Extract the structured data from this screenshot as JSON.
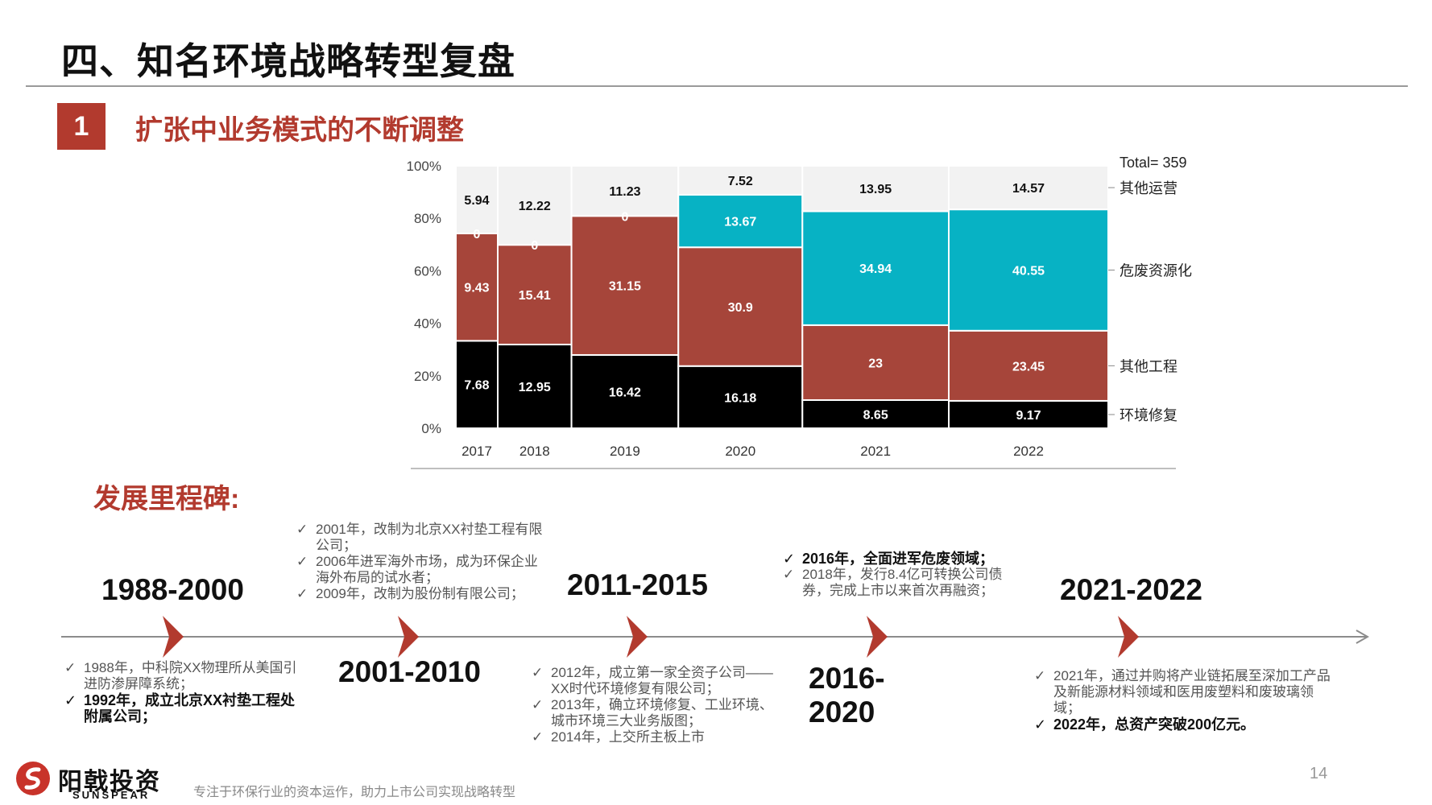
{
  "header": {
    "title": "四、知名环境战略转型复盘",
    "section_number": "1",
    "section_title": "扩张中业务模式的不断调整"
  },
  "colors": {
    "accent": "#b23a2e",
    "环境修复": "#000000",
    "其他工程": "#a6453a",
    "危废资源化": "#07b2c4",
    "其他运营": "#f2f2f2"
  },
  "chart_data": {
    "type": "bar",
    "subtype": "marimekko",
    "categories": [
      "2017",
      "2018",
      "2019",
      "2020",
      "2021",
      "2022"
    ],
    "series": [
      {
        "name": "环境修复",
        "values": [
          7.68,
          12.95,
          16.42,
          16.18,
          8.65,
          9.17
        ],
        "labels": [
          "7.68",
          "12.95",
          "16.42",
          "16.18",
          "8.65",
          "9.17"
        ]
      },
      {
        "name": "其他工程",
        "values": [
          9.43,
          15.41,
          31.15,
          30.9,
          23,
          23.45
        ],
        "labels": [
          "9.43",
          "15.41",
          "31.15",
          "30.9",
          "23",
          "23.45"
        ]
      },
      {
        "name": "危废资源化",
        "values": [
          0,
          0,
          0,
          13.67,
          34.94,
          40.55
        ],
        "labels": [
          "0",
          "0",
          "0",
          "13.67",
          "34.94",
          "40.55"
        ]
      },
      {
        "name": "其他运营",
        "values": [
          5.94,
          12.22,
          11.23,
          7.52,
          13.95,
          14.57
        ],
        "labels": [
          "5.94",
          "12.22",
          "11.23",
          "7.52",
          "13.95",
          "14.57"
        ]
      }
    ],
    "y_tick_labels": [
      "0%",
      "20%",
      "40%",
      "60%",
      "80%",
      "100%"
    ],
    "ylim": [
      0,
      100
    ],
    "total_label": "Total= 359",
    "legend_position": "right"
  },
  "milestones": {
    "title": "发展里程碑:",
    "periods": [
      {
        "label": "1988-2000",
        "notes": [
          {
            "text": "1988年，中科院XX物理所从美国引进防渗屏障系统；",
            "bold": false
          },
          {
            "text": "1992年，成立北京XX衬垫工程处附属公司；",
            "bold": true
          }
        ]
      },
      {
        "label": "2001-2010",
        "notes": [
          {
            "text": "2001年，改制为北京XX衬垫工程有限公司；",
            "bold": false
          },
          {
            "text": "2006年进军海外市场，成为环保企业海外布局的试水者；",
            "bold": false
          },
          {
            "text": "2009年，改制为股份制有限公司；",
            "bold": false
          }
        ]
      },
      {
        "label": "2011-2015",
        "notes": [
          {
            "text": "2012年，成立第一家全资子公司——XX时代环境修复有限公司；",
            "bold": false
          },
          {
            "text": "2013年，确立环境修复、工业环境、城市环境三大业务版图；",
            "bold": false
          },
          {
            "text": "2014年，上交所主板上市",
            "bold": false
          }
        ]
      },
      {
        "label": "2016-2020",
        "notes": [
          {
            "text": "2016年，全面进军危废领域；",
            "bold": true
          },
          {
            "text": "2018年，发行8.4亿可转换公司债券，完成上市以来首次再融资；",
            "bold": false
          }
        ]
      },
      {
        "label": "2021-2022",
        "notes": [
          {
            "text": "2021年，通过并购将产业链拓展至深加工产品及新能源材料领域和医用废塑料和废玻璃领域；",
            "bold": false
          },
          {
            "text": "2022年，总资产突破200亿元。",
            "bold": true
          }
        ]
      }
    ],
    "check_mark": "✓"
  },
  "footer": {
    "logo_cn": "阳戟投资",
    "logo_en": "SUNSPEAR",
    "tagline": "专注于环保行业的资本运作，助力上市公司实现战略转型",
    "page_number": "14"
  }
}
